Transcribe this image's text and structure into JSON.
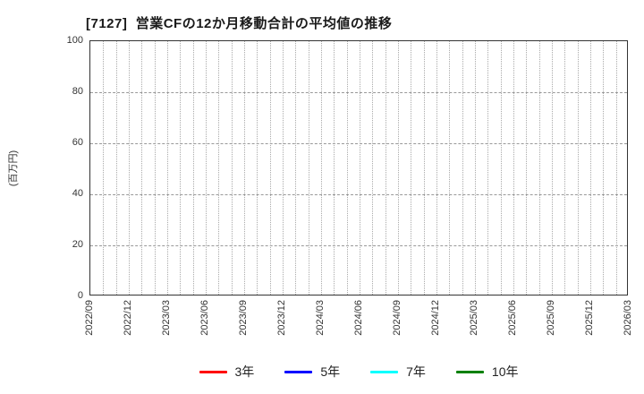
{
  "chart_data": {
    "type": "line",
    "title": "[7127]  営業CFの12か月移動合計の平均値の推移",
    "ylabel": "(百万円)",
    "xlabel": "",
    "x_tick_labels": [
      "2022/09",
      "2022/12",
      "2023/03",
      "2023/06",
      "2023/09",
      "2023/12",
      "2024/03",
      "2024/06",
      "2024/09",
      "2024/12",
      "2025/03",
      "2025/06",
      "2025/09",
      "2025/12",
      "2026/03"
    ],
    "minor_x_divisions": 42,
    "ylim": [
      0,
      100
    ],
    "yticks": [
      0,
      20,
      40,
      60,
      80,
      100
    ],
    "grid": true,
    "legend_position": "bottom-center",
    "series": [
      {
        "name": "3年",
        "color": "#ff0000",
        "values": []
      },
      {
        "name": "5年",
        "color": "#0000ff",
        "values": []
      },
      {
        "name": "7年",
        "color": "#00ffff",
        "values": []
      },
      {
        "name": "10年",
        "color": "#008000",
        "values": []
      }
    ]
  }
}
